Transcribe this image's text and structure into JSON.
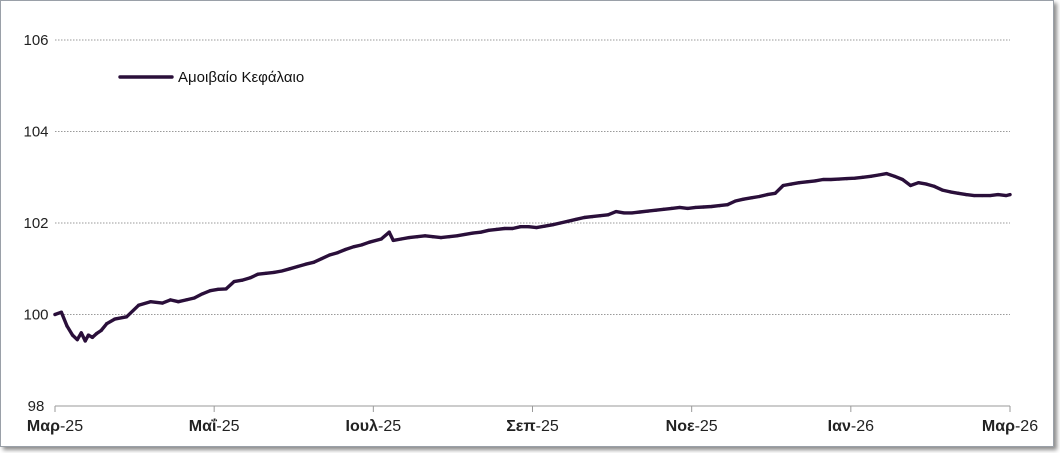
{
  "chart_data": {
    "type": "line",
    "title": "",
    "xlabel": "",
    "ylabel": "",
    "ylim": [
      98,
      106
    ],
    "yticks": [
      "98",
      "100",
      "102",
      "104",
      "106"
    ],
    "xticks": [
      {
        "bold": "Μαρ",
        "rest": "-25"
      },
      {
        "bold": "Μαΐ",
        "rest": "-25"
      },
      {
        "bold": "Ιουλ",
        "rest": "-25"
      },
      {
        "bold": "Σεπ",
        "rest": "-25"
      },
      {
        "bold": "Νοε",
        "rest": "-25"
      },
      {
        "bold": "Ιαν",
        "rest": "-26"
      },
      {
        "bold": "Μαρ",
        "rest": "-26"
      }
    ],
    "grid": true,
    "legend_position": "top-left",
    "series": [
      {
        "name": "Αμοιβαίο Κεφάλαιο",
        "color": "#2a0f3a",
        "x_months": [
          0,
          0.08,
          0.15,
          0.22,
          0.28,
          0.33,
          0.38,
          0.42,
          0.47,
          0.52,
          0.58,
          0.65,
          0.75,
          0.9,
          1.05,
          1.2,
          1.35,
          1.45,
          1.55,
          1.65,
          1.75,
          1.85,
          1.95,
          2.05,
          2.15,
          2.25,
          2.35,
          2.45,
          2.55,
          2.65,
          2.75,
          2.85,
          2.95,
          3.05,
          3.15,
          3.25,
          3.35,
          3.45,
          3.55,
          3.65,
          3.75,
          3.85,
          3.95,
          4.1,
          4.2,
          4.25,
          4.35,
          4.45,
          4.55,
          4.65,
          4.75,
          4.85,
          4.95,
          5.05,
          5.15,
          5.25,
          5.35,
          5.45,
          5.55,
          5.65,
          5.75,
          5.85,
          5.95,
          6.05,
          6.15,
          6.25,
          6.35,
          6.45,
          6.55,
          6.65,
          6.75,
          6.85,
          6.95,
          7.05,
          7.15,
          7.25,
          7.35,
          7.45,
          7.55,
          7.65,
          7.75,
          7.85,
          7.95,
          8.05,
          8.15,
          8.25,
          8.35,
          8.45,
          8.55,
          8.65,
          8.75,
          8.85,
          8.95,
          9.05,
          9.15,
          9.25,
          9.35,
          9.45,
          9.55,
          9.65,
          9.75,
          9.85,
          9.95,
          10.05,
          10.15,
          10.25,
          10.35,
          10.45,
          10.55,
          10.65,
          10.75,
          10.85,
          10.95,
          11.05,
          11.15,
          11.25,
          11.35,
          11.45,
          11.55,
          11.65,
          11.75,
          11.85,
          11.95,
          12.0
        ],
        "values": [
          100.0,
          100.05,
          99.75,
          99.55,
          99.45,
          99.6,
          99.42,
          99.55,
          99.5,
          99.58,
          99.65,
          99.8,
          99.9,
          99.95,
          100.2,
          100.28,
          100.25,
          100.32,
          100.28,
          100.32,
          100.36,
          100.45,
          100.52,
          100.55,
          100.56,
          100.72,
          100.75,
          100.8,
          100.88,
          100.9,
          100.92,
          100.95,
          101.0,
          101.05,
          101.1,
          101.14,
          101.22,
          101.3,
          101.35,
          101.42,
          101.48,
          101.52,
          101.58,
          101.65,
          101.8,
          101.62,
          101.65,
          101.68,
          101.7,
          101.72,
          101.7,
          101.68,
          101.7,
          101.72,
          101.75,
          101.78,
          101.8,
          101.84,
          101.86,
          101.88,
          101.88,
          101.92,
          101.92,
          101.9,
          101.93,
          101.96,
          102.0,
          102.04,
          102.08,
          102.12,
          102.14,
          102.16,
          102.18,
          102.25,
          102.22,
          102.22,
          102.24,
          102.26,
          102.28,
          102.3,
          102.32,
          102.34,
          102.32,
          102.34,
          102.35,
          102.36,
          102.38,
          102.4,
          102.48,
          102.52,
          102.55,
          102.58,
          102.62,
          102.65,
          102.82,
          102.85,
          102.88,
          102.9,
          102.92,
          102.95,
          102.95,
          102.96,
          102.97,
          102.98,
          103.0,
          103.02,
          103.05,
          103.08,
          103.02,
          102.95,
          102.82,
          102.88,
          102.85,
          102.8,
          102.72,
          102.68,
          102.65,
          102.62,
          102.6,
          102.6,
          102.6,
          102.62,
          102.6,
          102.62
        ]
      }
    ]
  }
}
